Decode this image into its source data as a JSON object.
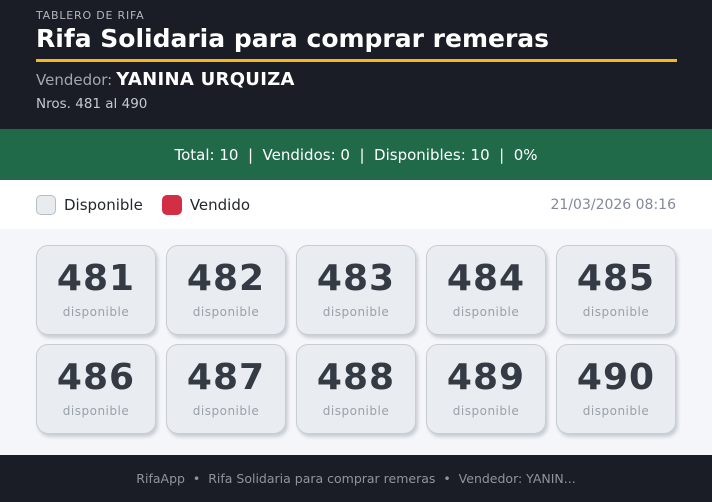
{
  "colors": {
    "header_bg": "#1a1d25",
    "accent_line": "#f6b917",
    "stats_bg": "#206a4a",
    "sold_red": "#d32f44",
    "available_swatch": "#e9ecef",
    "board_bg": "#f4f6fa",
    "card_bg": "#e9ecf0"
  },
  "header": {
    "kicker": "TABLERO DE RIFA",
    "title": "Rifa Solidaria para comprar remeras",
    "vendor_label": "Vendedor:",
    "vendor_name": "YANINA URQUIZA",
    "range": "Nros. 481 al 490"
  },
  "stats": {
    "segments": [
      "Total: 10",
      "Vendidos: 0",
      "Disponibles: 10",
      "0%"
    ],
    "separator": "|"
  },
  "legend": {
    "available_label": "Disponible",
    "sold_label": "Vendido",
    "timestamp": "21/03/2026 08:16"
  },
  "board": {
    "cells": [
      {
        "number": "481",
        "status": "disponible"
      },
      {
        "number": "482",
        "status": "disponible"
      },
      {
        "number": "483",
        "status": "disponible"
      },
      {
        "number": "484",
        "status": "disponible"
      },
      {
        "number": "485",
        "status": "disponible"
      },
      {
        "number": "486",
        "status": "disponible"
      },
      {
        "number": "487",
        "status": "disponible"
      },
      {
        "number": "488",
        "status": "disponible"
      },
      {
        "number": "489",
        "status": "disponible"
      },
      {
        "number": "490",
        "status": "disponible"
      }
    ]
  },
  "footer": {
    "segments": [
      "RifaApp",
      "Rifa Solidaria para comprar remeras",
      "Vendedor: YANIN..."
    ],
    "separator": "•"
  }
}
